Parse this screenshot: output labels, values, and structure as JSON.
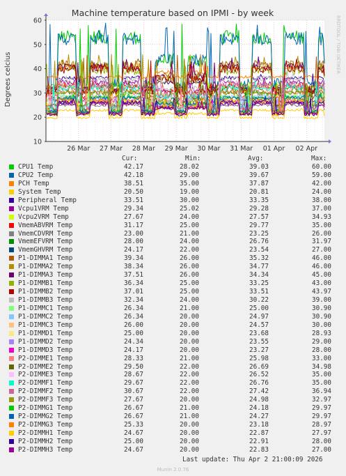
{
  "chart_data": {
    "type": "line",
    "title": "Machine temperature based on IPMI - by week",
    "ylabel": "Degrees celcius",
    "xlabel": "",
    "ylim": [
      10,
      60
    ],
    "yticks": [
      10,
      20,
      30,
      40,
      50,
      60
    ],
    "x_range_days": [
      25.0,
      33.55
    ],
    "xticks": [
      {
        "label": "26 Mar",
        "day": 26
      },
      {
        "label": "27 Mar",
        "day": 27
      },
      {
        "label": "28 Mar",
        "day": 28
      },
      {
        "label": "29 Mar",
        "day": 29
      },
      {
        "label": "30 Mar",
        "day": 30
      },
      {
        "label": "31 Mar",
        "day": 31
      },
      {
        "label": "01 Apr",
        "day": 32
      },
      {
        "label": "02 Apr",
        "day": 33
      }
    ],
    "grid": true,
    "watermark": "RRDTOOL / TOBI OETIKER",
    "columns": {
      "cur": "Cur:",
      "min": "Min:",
      "avg": "Avg:",
      "max": "Max:"
    },
    "series": [
      {
        "name": "CPU1 Temp",
        "color": "#00cc00",
        "cur": "42.17",
        "min": "28.02",
        "avg": "39.03",
        "max": "60.00"
      },
      {
        "name": "CPU2 Temp",
        "color": "#0066b3",
        "cur": "42.18",
        "min": "29.00",
        "avg": "39.67",
        "max": "59.00"
      },
      {
        "name": "PCH Temp",
        "color": "#ff8000",
        "cur": "38.51",
        "min": "35.00",
        "avg": "37.87",
        "max": "42.00"
      },
      {
        "name": "System Temp",
        "color": "#ffcc00",
        "cur": "20.50",
        "min": "19.00",
        "avg": "20.81",
        "max": "24.00"
      },
      {
        "name": "Peripheral Temp",
        "color": "#330099",
        "cur": "33.51",
        "min": "30.00",
        "avg": "33.35",
        "max": "38.00"
      },
      {
        "name": "Vcpu1VRM Temp",
        "color": "#990099",
        "cur": "29.34",
        "min": "25.02",
        "avg": "29.28",
        "max": "37.00"
      },
      {
        "name": "Vcpu2VRM Temp",
        "color": "#ccff00",
        "cur": "27.67",
        "min": "24.00",
        "avg": "27.57",
        "max": "34.93"
      },
      {
        "name": "VmemABVRM Temp",
        "color": "#ff0000",
        "cur": "31.17",
        "min": "25.00",
        "avg": "29.77",
        "max": "35.00"
      },
      {
        "name": "VmemCDVRM Temp",
        "color": "#808080",
        "cur": "23.00",
        "min": "21.00",
        "avg": "23.25",
        "max": "26.00"
      },
      {
        "name": "VmemEFVRM Temp",
        "color": "#008f00",
        "cur": "28.00",
        "min": "24.00",
        "avg": "26.76",
        "max": "31.97"
      },
      {
        "name": "VmemGHVRM Temp",
        "color": "#00487d",
        "cur": "24.17",
        "min": "22.00",
        "avg": "23.54",
        "max": "27.00"
      },
      {
        "name": "P1-DIMMA1 Temp",
        "color": "#b35a00",
        "cur": "39.34",
        "min": "26.00",
        "avg": "35.32",
        "max": "46.00"
      },
      {
        "name": "P1-DIMMA2 Temp",
        "color": "#b38f00",
        "cur": "38.34",
        "min": "26.00",
        "avg": "34.77",
        "max": "46.00"
      },
      {
        "name": "P1-DIMMA3 Temp",
        "color": "#6b006b",
        "cur": "37.51",
        "min": "26.00",
        "avg": "34.34",
        "max": "45.00"
      },
      {
        "name": "P1-DIMMB1 Temp",
        "color": "#8fb300",
        "cur": "36.34",
        "min": "25.00",
        "avg": "33.25",
        "max": "43.00"
      },
      {
        "name": "P1-DIMMB2 Temp",
        "color": "#b30000",
        "cur": "37.01",
        "min": "25.00",
        "avg": "33.51",
        "max": "43.97"
      },
      {
        "name": "P1-DIMMB3 Temp",
        "color": "#bebebe",
        "cur": "32.34",
        "min": "24.00",
        "avg": "30.22",
        "max": "39.00"
      },
      {
        "name": "P1-DIMMC1 Temp",
        "color": "#80ff80",
        "cur": "26.34",
        "min": "21.00",
        "avg": "25.00",
        "max": "30.90"
      },
      {
        "name": "P1-DIMMC2 Temp",
        "color": "#80c9ff",
        "cur": "26.34",
        "min": "20.00",
        "avg": "24.97",
        "max": "30.90"
      },
      {
        "name": "P1-DIMMC3 Temp",
        "color": "#ffc080",
        "cur": "26.00",
        "min": "20.00",
        "avg": "24.57",
        "max": "30.00"
      },
      {
        "name": "P1-DIMMD1 Temp",
        "color": "#ffe680",
        "cur": "25.00",
        "min": "20.00",
        "avg": "23.68",
        "max": "28.93"
      },
      {
        "name": "P1-DIMMD2 Temp",
        "color": "#aa80ff",
        "cur": "24.34",
        "min": "20.00",
        "avg": "23.55",
        "max": "29.00"
      },
      {
        "name": "P1-DIMMD3 Temp",
        "color": "#ee00cc",
        "cur": "24.17",
        "min": "20.00",
        "avg": "23.27",
        "max": "28.00"
      },
      {
        "name": "P2-DIMME1 Temp",
        "color": "#ff8080",
        "cur": "28.33",
        "min": "21.00",
        "avg": "25.98",
        "max": "33.00"
      },
      {
        "name": "P2-DIMME2 Temp",
        "color": "#666600",
        "cur": "29.50",
        "min": "22.00",
        "avg": "26.69",
        "max": "34.98"
      },
      {
        "name": "P2-DIMME3 Temp",
        "color": "#ffbfff",
        "cur": "28.67",
        "min": "22.00",
        "avg": "26.52",
        "max": "35.00"
      },
      {
        "name": "P2-DIMMF1 Temp",
        "color": "#00ffcc",
        "cur": "29.67",
        "min": "22.00",
        "avg": "26.76",
        "max": "35.00"
      },
      {
        "name": "P2-DIMMF2 Temp",
        "color": "#cc6699",
        "cur": "30.67",
        "min": "22.00",
        "avg": "27.42",
        "max": "36.94"
      },
      {
        "name": "P2-DIMMF3 Temp",
        "color": "#999900",
        "cur": "27.67",
        "min": "20.00",
        "avg": "24.98",
        "max": "32.97"
      },
      {
        "name": "P2-DIMMG1 Temp",
        "color": "#00cc00",
        "cur": "26.67",
        "min": "21.00",
        "avg": "24.18",
        "max": "29.97"
      },
      {
        "name": "P2-DIMMG2 Temp",
        "color": "#0066b3",
        "cur": "26.67",
        "min": "21.00",
        "avg": "24.27",
        "max": "29.97"
      },
      {
        "name": "P2-DIMMG3 Temp",
        "color": "#ff8000",
        "cur": "25.33",
        "min": "20.00",
        "avg": "23.18",
        "max": "28.97"
      },
      {
        "name": "P2-DIMMH1 Temp",
        "color": "#ffcc00",
        "cur": "24.67",
        "min": "20.00",
        "avg": "22.87",
        "max": "27.97"
      },
      {
        "name": "P2-DIMMH2 Temp",
        "color": "#330099",
        "cur": "25.00",
        "min": "20.00",
        "avg": "22.91",
        "max": "28.00"
      },
      {
        "name": "P2-DIMMH3 Temp",
        "color": "#990099",
        "cur": "24.67",
        "min": "20.00",
        "avg": "22.83",
        "max": "27.00"
      }
    ]
  },
  "footer": {
    "last_update": "Last update: Thu Apr  2 21:00:09 2026",
    "version": "Munin 2.0.76"
  }
}
